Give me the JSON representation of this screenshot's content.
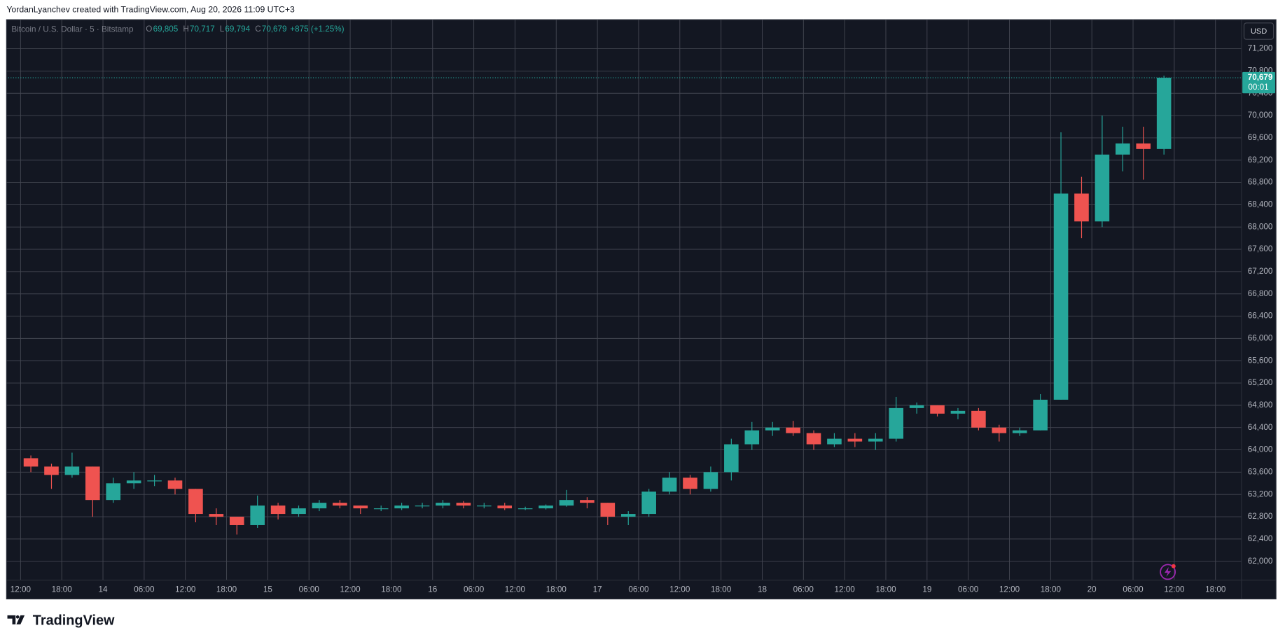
{
  "chart_data": {
    "type": "candlestick",
    "attribution": "YordanLyanchev created with TradingView.com, Aug 20, 2026 11:09 UTC+3",
    "title": "Bitcoin / U.S. Dollar · 5 · Bitstamp",
    "legend_prefixes": [
      "O",
      "H",
      "L",
      "C"
    ],
    "legend_values": [
      "69,805",
      "70,717",
      "69,794",
      "70,679",
      "+875 (+1.25%)"
    ],
    "currency": "USD",
    "brand": "TradingView",
    "last_price": {
      "value": 70679,
      "label": "70,679"
    },
    "countdown": "00:01",
    "up_color": "#26a69a",
    "down_color": "#ef5350",
    "background": "#131722",
    "grid": true,
    "grid_color": "#434651",
    "x": [
      "2026-08-13 12:00",
      "2026-08-13 15:00",
      "2026-08-13 18:00",
      "2026-08-13 21:00",
      "2026-08-14 00:00",
      "2026-08-14 03:00",
      "2026-08-14 06:00",
      "2026-08-14 09:00",
      "2026-08-14 12:00",
      "2026-08-14 15:00",
      "2026-08-14 18:00",
      "2026-08-14 21:00",
      "2026-08-15 00:00",
      "2026-08-15 03:00",
      "2026-08-15 06:00",
      "2026-08-15 09:00",
      "2026-08-15 12:00",
      "2026-08-15 15:00",
      "2026-08-15 18:00",
      "2026-08-15 21:00",
      "2026-08-16 00:00",
      "2026-08-16 03:00",
      "2026-08-16 06:00",
      "2026-08-16 09:00",
      "2026-08-16 12:00",
      "2026-08-16 15:00",
      "2026-08-16 18:00",
      "2026-08-16 21:00",
      "2026-08-17 00:00",
      "2026-08-17 03:00",
      "2026-08-17 06:00",
      "2026-08-17 09:00",
      "2026-08-17 12:00",
      "2026-08-17 15:00",
      "2026-08-17 18:00",
      "2026-08-17 21:00",
      "2026-08-18 00:00",
      "2026-08-18 03:00",
      "2026-08-18 06:00",
      "2026-08-18 09:00",
      "2026-08-18 12:00",
      "2026-08-18 15:00",
      "2026-08-18 18:00",
      "2026-08-18 21:00",
      "2026-08-19 00:00",
      "2026-08-19 03:00",
      "2026-08-19 06:00",
      "2026-08-19 09:00",
      "2026-08-19 12:00",
      "2026-08-19 15:00",
      "2026-08-19 18:00",
      "2026-08-19 21:00",
      "2026-08-20 00:00",
      "2026-08-20 03:00",
      "2026-08-20 06:00",
      "2026-08-20 09:00"
    ],
    "open": [
      63850,
      63700,
      63550,
      63700,
      63100,
      63400,
      63450,
      63450,
      63300,
      62850,
      62800,
      62650,
      63000,
      62850,
      62950,
      63050,
      63000,
      62950,
      62950,
      63000,
      63000,
      63050,
      63000,
      63000,
      62950,
      62950,
      63000,
      63100,
      63050,
      62800,
      62850,
      63250,
      63500,
      63300,
      63600,
      64100,
      64350,
      64400,
      64300,
      64100,
      64200,
      64150,
      64200,
      64750,
      64800,
      64650,
      64700,
      64400,
      64300,
      64350,
      64900,
      68600,
      68100,
      69300,
      69500,
      69400
    ],
    "high": [
      63900,
      63750,
      63950,
      63700,
      63500,
      63600,
      63550,
      63500,
      63300,
      62950,
      62800,
      63180,
      63050,
      63000,
      63100,
      63100,
      63000,
      63000,
      63050,
      63050,
      63100,
      63080,
      63050,
      63050,
      62980,
      63020,
      63280,
      63150,
      63050,
      62900,
      63300,
      63600,
      63550,
      63700,
      64200,
      64500,
      64500,
      64520,
      64350,
      64300,
      64300,
      64300,
      64950,
      64850,
      64800,
      64750,
      64750,
      64450,
      64400,
      65000,
      69700,
      68900,
      70000,
      69800,
      69800,
      70717
    ],
    "low": [
      63600,
      63300,
      63500,
      62800,
      63050,
      63300,
      63350,
      63200,
      62700,
      62650,
      62480,
      62600,
      62750,
      62800,
      62900,
      62950,
      62850,
      62900,
      62920,
      62950,
      62950,
      62950,
      62950,
      62920,
      62920,
      62930,
      62980,
      62950,
      62650,
      62650,
      62800,
      63200,
      63200,
      63250,
      63450,
      64000,
      64250,
      64250,
      64000,
      64050,
      64050,
      64000,
      64150,
      64650,
      64600,
      64550,
      64350,
      64150,
      64250,
      64350,
      64900,
      67800,
      68000,
      69000,
      68850,
      69300
    ],
    "close": [
      63700,
      63550,
      63700,
      63100,
      63400,
      63450,
      63450,
      63300,
      62850,
      62800,
      62650,
      63000,
      62850,
      62950,
      63050,
      63000,
      62950,
      62950,
      63000,
      63000,
      63050,
      63000,
      63000,
      62950,
      62950,
      63000,
      63100,
      63050,
      62800,
      62850,
      63250,
      63500,
      63300,
      63600,
      64100,
      64350,
      64400,
      64300,
      64100,
      64200,
      64150,
      64200,
      64750,
      64800,
      64650,
      64700,
      64400,
      64300,
      64350,
      64900,
      68600,
      68100,
      69300,
      69500,
      69400,
      70679
    ],
    "xlim": [
      "2026-08-13 10:12",
      "2026-08-20 21:48"
    ],
    "xticks": [
      {
        "value": "2026-08-13 12:00",
        "label": "12:00"
      },
      {
        "value": "2026-08-13 18:00",
        "label": "18:00"
      },
      {
        "value": "2026-08-14 00:00",
        "label": "14"
      },
      {
        "value": "2026-08-14 06:00",
        "label": "06:00"
      },
      {
        "value": "2026-08-14 12:00",
        "label": "12:00"
      },
      {
        "value": "2026-08-14 18:00",
        "label": "18:00"
      },
      {
        "value": "2026-08-15 00:00",
        "label": "15"
      },
      {
        "value": "2026-08-15 06:00",
        "label": "06:00"
      },
      {
        "value": "2026-08-15 12:00",
        "label": "12:00"
      },
      {
        "value": "2026-08-15 18:00",
        "label": "18:00"
      },
      {
        "value": "2026-08-16 00:00",
        "label": "16"
      },
      {
        "value": "2026-08-16 06:00",
        "label": "06:00"
      },
      {
        "value": "2026-08-16 12:00",
        "label": "12:00"
      },
      {
        "value": "2026-08-16 18:00",
        "label": "18:00"
      },
      {
        "value": "2026-08-17 00:00",
        "label": "17"
      },
      {
        "value": "2026-08-17 06:00",
        "label": "06:00"
      },
      {
        "value": "2026-08-17 12:00",
        "label": "12:00"
      },
      {
        "value": "2026-08-17 18:00",
        "label": "18:00"
      },
      {
        "value": "2026-08-18 00:00",
        "label": "18"
      },
      {
        "value": "2026-08-18 06:00",
        "label": "06:00"
      },
      {
        "value": "2026-08-18 12:00",
        "label": "12:00"
      },
      {
        "value": "2026-08-18 18:00",
        "label": "18:00"
      },
      {
        "value": "2026-08-19 00:00",
        "label": "19"
      },
      {
        "value": "2026-08-19 06:00",
        "label": "06:00"
      },
      {
        "value": "2026-08-19 12:00",
        "label": "12:00"
      },
      {
        "value": "2026-08-19 18:00",
        "label": "18:00"
      },
      {
        "value": "2026-08-20 00:00",
        "label": "20"
      },
      {
        "value": "2026-08-20 06:00",
        "label": "06:00"
      },
      {
        "value": "2026-08-20 12:00",
        "label": "12:00"
      },
      {
        "value": "2026-08-20 18:00",
        "label": "18:00"
      }
    ],
    "ylim": [
      61662,
      71721
    ],
    "yticks": [
      {
        "value": 62000,
        "label": "62,000"
      },
      {
        "value": 62400,
        "label": "62,400"
      },
      {
        "value": 62800,
        "label": "62,800"
      },
      {
        "value": 63200,
        "label": "63,200"
      },
      {
        "value": 63600,
        "label": "63,600"
      },
      {
        "value": 64000,
        "label": "64,000"
      },
      {
        "value": 64400,
        "label": "64,400"
      },
      {
        "value": 64800,
        "label": "64,800"
      },
      {
        "value": 65200,
        "label": "65,200"
      },
      {
        "value": 65600,
        "label": "65,600"
      },
      {
        "value": 66000,
        "label": "66,000"
      },
      {
        "value": 66400,
        "label": "66,400"
      },
      {
        "value": 66800,
        "label": "66,800"
      },
      {
        "value": 67200,
        "label": "67,200"
      },
      {
        "value": 67600,
        "label": "67,600"
      },
      {
        "value": 68000,
        "label": "68,000"
      },
      {
        "value": 68400,
        "label": "68,400"
      },
      {
        "value": 68800,
        "label": "68,800"
      },
      {
        "value": 69200,
        "label": "69,200"
      },
      {
        "value": 69600,
        "label": "69,600"
      },
      {
        "value": 70000,
        "label": "70,000"
      },
      {
        "value": 70400,
        "label": "70,400"
      },
      {
        "value": 70800,
        "label": "70,800"
      },
      {
        "value": 71200,
        "label": "71,200"
      }
    ]
  }
}
